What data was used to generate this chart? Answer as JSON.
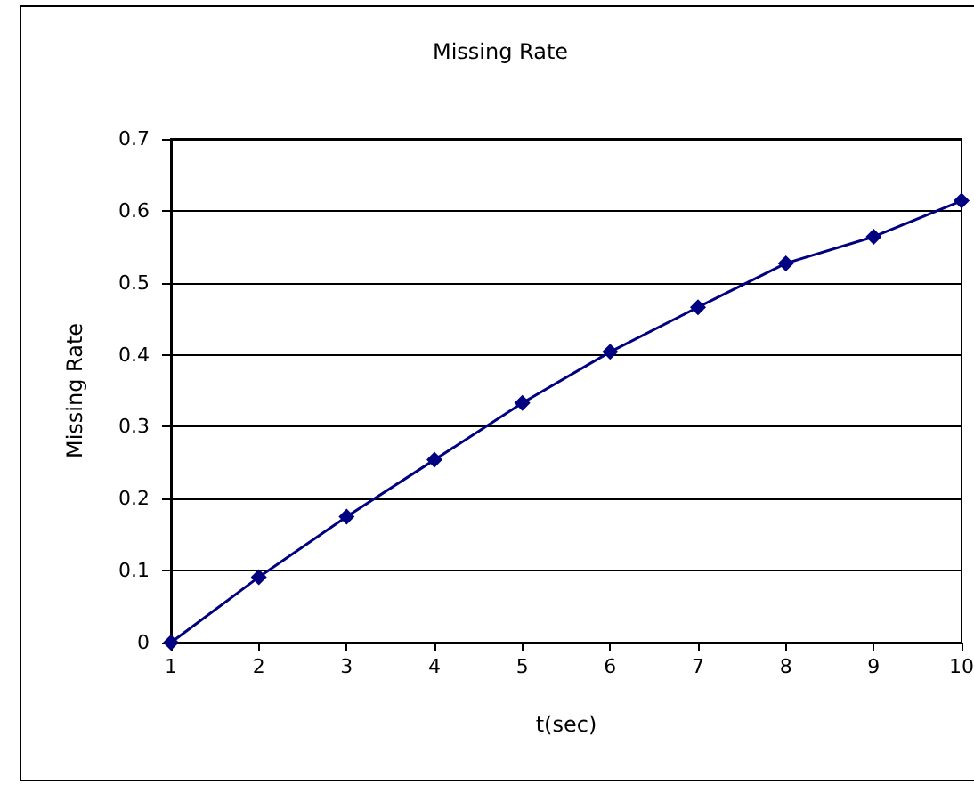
{
  "chart_data": {
    "type": "line",
    "title": "Missing Rate",
    "xlabel": "t(sec)",
    "ylabel": "Missing Rate",
    "x": [
      1,
      2,
      3,
      4,
      5,
      6,
      7,
      8,
      9,
      10
    ],
    "series": [
      {
        "color": "#000080",
        "values": [
          0,
          0.091,
          0.175,
          0.254,
          0.333,
          0.404,
          0.466,
          0.527,
          0.564,
          0.614
        ]
      }
    ],
    "xlim": [
      1,
      10
    ],
    "xticks": [
      1,
      2,
      3,
      4,
      5,
      6,
      7,
      8,
      9,
      10
    ],
    "ylim": [
      0,
      0.7
    ],
    "yticks": [
      0,
      0.1,
      0.2,
      0.3,
      0.4,
      0.5,
      0.6,
      0.7
    ],
    "grid": "y",
    "marker": "diamond",
    "line_style": "solid"
  }
}
